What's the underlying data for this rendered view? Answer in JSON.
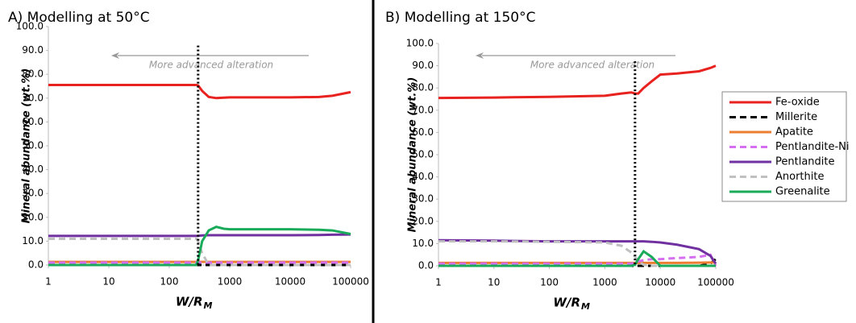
{
  "chart_data": [
    {
      "type": "line",
      "title": "A) Modelling at 50°C",
      "y_label": "Mineral abundance (wt.%)",
      "x_label": "W/R",
      "x_label_subscript": "M",
      "annotation": "More advanced alteration",
      "x_scale": "log",
      "marker_x": 300,
      "x": [
        1,
        10,
        100,
        200,
        280,
        300,
        350,
        450,
        600,
        800,
        1000,
        3000,
        10000,
        30000,
        50000,
        100000
      ],
      "xlim": [
        1,
        100000
      ],
      "xticks": [
        1,
        10,
        100,
        1000,
        10000,
        100000
      ],
      "ylim": [
        0,
        100
      ],
      "yticks": [
        {
          "value": 0,
          "label": "0.0"
        },
        {
          "value": 10,
          "label": "10.0"
        },
        {
          "value": 20,
          "label": "20.0"
        },
        {
          "value": 30,
          "label": "30.0"
        },
        {
          "value": 40,
          "label": "40.0"
        },
        {
          "value": 50,
          "label": "50.0"
        },
        {
          "value": 60,
          "label": "60.0"
        },
        {
          "value": 70,
          "label": "70.0"
        },
        {
          "value": 80,
          "label": "80.0"
        },
        {
          "value": 90,
          "label": "90.0"
        },
        {
          "value": 100,
          "label": "100.0"
        }
      ],
      "series": [
        {
          "color": "#e8221f",
          "dash": false,
          "values": [
            75.5,
            75.5,
            75.5,
            75.5,
            75.5,
            75.3,
            73,
            70.5,
            70,
            70.2,
            70.3,
            70.3,
            70.3,
            70.5,
            71,
            72.5
          ]
        },
        {
          "color": "#000000",
          "dash": true,
          "values": [
            0,
            0,
            0,
            0,
            0,
            0,
            0,
            0,
            0,
            0,
            0,
            0,
            0,
            0,
            0,
            0
          ]
        },
        {
          "color": "#ed7d31",
          "dash": false,
          "values": [
            1.3,
            1.3,
            1.3,
            1.3,
            1.3,
            1.3,
            1.3,
            1.3,
            1.3,
            1.3,
            1.3,
            1.3,
            1.3,
            1.3,
            1.3,
            1.3
          ]
        },
        {
          "color": "#d66ef0",
          "dash": true,
          "values": [
            1,
            1,
            1,
            1,
            1,
            1,
            1,
            1,
            1,
            1,
            1,
            1,
            1,
            1,
            1,
            1
          ]
        },
        {
          "color": "#7030a0",
          "dash": false,
          "values": [
            12.2,
            12.2,
            12.2,
            12.2,
            12.2,
            12.2,
            12.4,
            12.5,
            12.5,
            12.5,
            12.5,
            12.5,
            12.5,
            12.6,
            12.7,
            12.8
          ]
        },
        {
          "color": "#c0c0c0",
          "dash": true,
          "values": [
            11,
            11,
            11,
            11,
            11,
            10,
            5,
            0,
            0,
            0,
            0,
            0,
            0,
            0,
            0,
            0
          ]
        },
        {
          "color": "#1aab5a",
          "dash": false,
          "values": [
            0,
            0,
            0,
            0,
            0,
            2,
            10,
            14.5,
            16,
            15.2,
            15,
            15,
            15,
            14.8,
            14.5,
            13
          ]
        }
      ]
    },
    {
      "type": "line",
      "title": "B) Modelling at 150°C",
      "y_label": "Mineral abundance (wt.%)",
      "x_label": "W/R",
      "x_label_subscript": "M",
      "annotation": "More advanced alteration",
      "x_scale": "log",
      "marker_x": 3500,
      "x": [
        1,
        10,
        100,
        1000,
        2000,
        3000,
        3500,
        4000,
        5000,
        7000,
        10000,
        20000,
        50000,
        80000,
        100000
      ],
      "xlim": [
        1,
        100000
      ],
      "xticks": [
        1,
        10,
        100,
        1000,
        10000,
        100000
      ],
      "ylim": [
        0,
        100
      ],
      "yticks": [
        {
          "value": 0,
          "label": "0.0"
        },
        {
          "value": 10,
          "label": "10.0"
        },
        {
          "value": 20,
          "label": "20.0"
        },
        {
          "value": 30,
          "label": "30.0"
        },
        {
          "value": 40,
          "label": "40.0"
        },
        {
          "value": 50,
          "label": "50.0"
        },
        {
          "value": 60,
          "label": "60.0"
        },
        {
          "value": 70,
          "label": "70.0"
        },
        {
          "value": 80,
          "label": "80.0"
        },
        {
          "value": 90,
          "label": "90.0"
        },
        {
          "value": 100,
          "label": "100.0"
        }
      ],
      "series": [
        {
          "name": "Fe-oxide",
          "color": "#e8221f",
          "dash": false,
          "values": [
            75.5,
            75.7,
            76,
            76.5,
            77.5,
            78,
            77.5,
            77.5,
            80,
            83,
            86,
            86.5,
            87.5,
            89,
            90
          ]
        },
        {
          "name": "Millerite",
          "color": "#000000",
          "dash": true,
          "values": [
            0,
            0,
            0,
            0,
            0,
            0,
            0,
            0,
            0,
            0,
            0,
            0,
            0,
            1,
            3
          ]
        },
        {
          "name": "Apatite",
          "color": "#ed7d31",
          "dash": false,
          "values": [
            1.3,
            1.3,
            1.3,
            1.3,
            1.3,
            1.3,
            1.3,
            1.3,
            1.3,
            1.3,
            1.3,
            1.3,
            1.4,
            1.5,
            1.5
          ]
        },
        {
          "name": "Pentlandite-Ni",
          "color": "#d66ef0",
          "dash": true,
          "values": [
            1,
            1,
            1,
            1,
            1,
            1,
            1.5,
            2,
            2.5,
            3,
            3,
            3.5,
            4,
            5,
            0
          ]
        },
        {
          "name": "Pentlandite",
          "color": "#7030a0",
          "dash": false,
          "values": [
            11.5,
            11.3,
            11,
            11,
            11,
            11,
            11,
            11,
            11,
            10.8,
            10.5,
            9.5,
            7.5,
            4.5,
            1
          ]
        },
        {
          "name": "Anorthite",
          "color": "#c0c0c0",
          "dash": true,
          "values": [
            11,
            11,
            10.8,
            10.5,
            9,
            6,
            4,
            2,
            0.5,
            0,
            0,
            0,
            0,
            0,
            0
          ]
        },
        {
          "name": "Greenalite",
          "color": "#1aab5a",
          "dash": false,
          "values": [
            0,
            0,
            0,
            0,
            0,
            0,
            0.5,
            3,
            6.5,
            4,
            0,
            0,
            0,
            0,
            0
          ]
        }
      ]
    }
  ]
}
